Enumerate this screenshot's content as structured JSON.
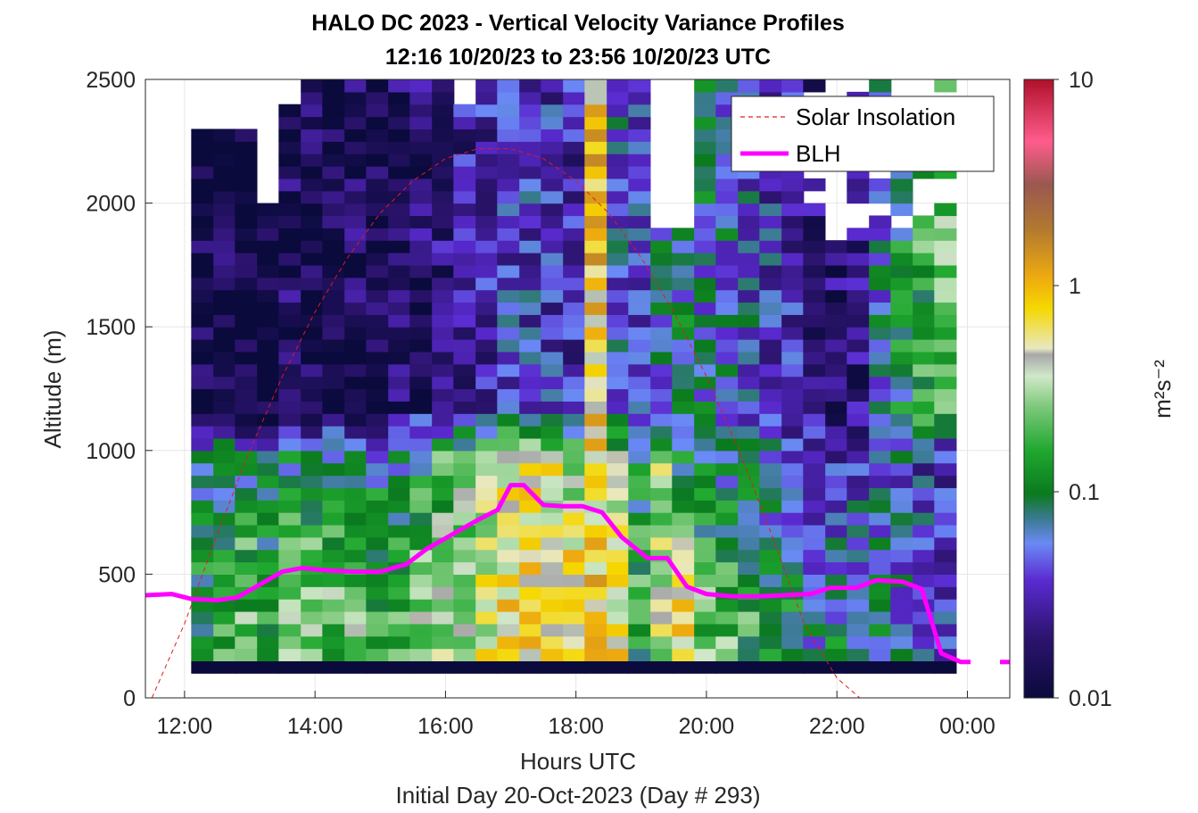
{
  "figure": {
    "title_line1": "HALO DC 2023 - Vertical Velocity Variance Profiles",
    "title_line2": "12:16 10/20/23 to 23:56 10/20/23  UTC",
    "footer": "Initial Day 20-Oct-2023 (Day # 293)"
  },
  "chart_data": {
    "type": "heatmap",
    "title": "HALO DC 2023 - Vertical Velocity Variance Profiles",
    "subtitle": "12:16 10/20/23 to 23:56 10/20/23  UTC",
    "xlabel": "Hours UTC",
    "ylabel": "Altitude (m)",
    "colorbar_label": "m²s⁻²",
    "colorbar_scale": "log",
    "colorbar_range": [
      0.01,
      10
    ],
    "colorbar_ticks": [
      "0.01",
      "0.1",
      "1",
      "10"
    ],
    "xlim_hours": [
      11.4,
      24.65
    ],
    "ylim": [
      0,
      2500
    ],
    "x_ticks": [
      {
        "hour": 12,
        "label": "12:00"
      },
      {
        "hour": 14,
        "label": "14:00"
      },
      {
        "hour": 16,
        "label": "16:00"
      },
      {
        "hour": 18,
        "label": "18:00"
      },
      {
        "hour": 20,
        "label": "20:00"
      },
      {
        "hour": 22,
        "label": "22:00"
      },
      {
        "hour": 24,
        "label": "00:00"
      }
    ],
    "y_ticks": [
      0,
      500,
      1000,
      1500,
      2000,
      2500
    ],
    "grid": true,
    "legend_position": "top-right",
    "heatmap_columns_hours": [
      12.27,
      12.61,
      12.94,
      13.28,
      13.61,
      13.95,
      14.28,
      14.62,
      14.95,
      15.29,
      15.62,
      15.96,
      16.29,
      16.63,
      16.96,
      17.3,
      17.63,
      17.97,
      18.3,
      18.64,
      18.97,
      19.31,
      19.64,
      19.98,
      20.31,
      20.65,
      20.98,
      21.32,
      21.65,
      21.99,
      22.32,
      22.66,
      22.99,
      23.33,
      23.66
    ],
    "heatmap_row_height_m": 50,
    "heatmap_variance_profiles_m2s2_by_level": {
      "note_levels": "low (150-450 m) | mixed layer top | free troposphere (1000-2300 m)",
      "low_level": [
        0.12,
        0.15,
        0.2,
        0.18,
        0.2,
        0.22,
        0.2,
        0.22,
        0.18,
        0.2,
        0.25,
        0.3,
        0.35,
        0.45,
        0.6,
        0.7,
        0.65,
        0.7,
        0.7,
        0.6,
        0.15,
        0.4,
        0.55,
        0.2,
        0.18,
        0.15,
        0.12,
        0.1,
        0.06,
        0.08,
        0.07,
        0.08,
        0.06,
        0.05,
        0.04
      ],
      "mixed_layer_top": [
        0.08,
        0.09,
        0.07,
        0.06,
        0.08,
        0.1,
        0.08,
        0.09,
        0.07,
        0.08,
        0.12,
        0.15,
        0.2,
        0.3,
        0.45,
        0.5,
        0.45,
        0.3,
        0.6,
        0.25,
        0.1,
        0.3,
        0.1,
        0.08,
        0.07,
        0.06,
        0.05,
        0.04,
        0.03,
        0.03,
        0.04,
        0.05,
        0.05,
        0.04,
        0.03
      ],
      "free_troposphere": [
        0.012,
        0.013,
        0.012,
        0.011,
        0.015,
        0.014,
        0.013,
        0.015,
        0.014,
        0.016,
        0.018,
        0.02,
        0.025,
        0.03,
        0.04,
        0.04,
        0.035,
        0.03,
        0.8,
        0.05,
        0.04,
        0.06,
        0.08,
        0.07,
        0.06,
        0.05,
        0.04,
        0.03,
        0.02,
        0.018,
        0.02,
        0.06,
        0.1,
        0.15,
        0.2
      ]
    },
    "series": [
      {
        "name": "Solar Insolation",
        "style": "dashed",
        "color": "#e31a1c",
        "x_hours": [
          11.5,
          12.0,
          12.5,
          13.0,
          13.5,
          14.0,
          14.5,
          15.0,
          15.5,
          16.0,
          16.5,
          17.0,
          17.5,
          18.0,
          18.5,
          19.0,
          19.5,
          20.0,
          20.5,
          21.0,
          21.5,
          22.0,
          22.35,
          24.65
        ],
        "y": [
          0,
          300,
          660,
          1000,
          1300,
          1560,
          1780,
          1960,
          2090,
          2180,
          2220,
          2220,
          2180,
          2090,
          1960,
          1780,
          1560,
          1300,
          1000,
          660,
          300,
          80,
          0,
          0
        ]
      },
      {
        "name": "BLH",
        "style": "solid",
        "color": "#ff00ff",
        "x_hours": [
          11.4,
          11.8,
          12.1,
          12.5,
          12.8,
          13.1,
          13.5,
          13.8,
          14.2,
          14.6,
          15.0,
          15.4,
          15.7,
          16.1,
          16.5,
          16.8,
          17.0,
          17.2,
          17.5,
          17.8,
          18.1,
          18.4,
          18.7,
          19.1,
          19.4,
          19.7,
          20.0,
          20.4,
          20.8,
          21.2,
          21.6,
          21.9,
          22.3,
          22.6,
          23.0,
          23.3,
          23.6,
          23.9,
          24.05
        ],
        "y": [
          415,
          420,
          400,
          395,
          405,
          450,
          510,
          525,
          515,
          510,
          510,
          540,
          600,
          660,
          720,
          760,
          860,
          860,
          780,
          775,
          775,
          750,
          650,
          565,
          565,
          450,
          420,
          410,
          410,
          415,
          420,
          445,
          445,
          475,
          470,
          440,
          180,
          145,
          145
        ]
      }
    ],
    "legend": [
      "Solar Insolation",
      "BLH"
    ]
  }
}
